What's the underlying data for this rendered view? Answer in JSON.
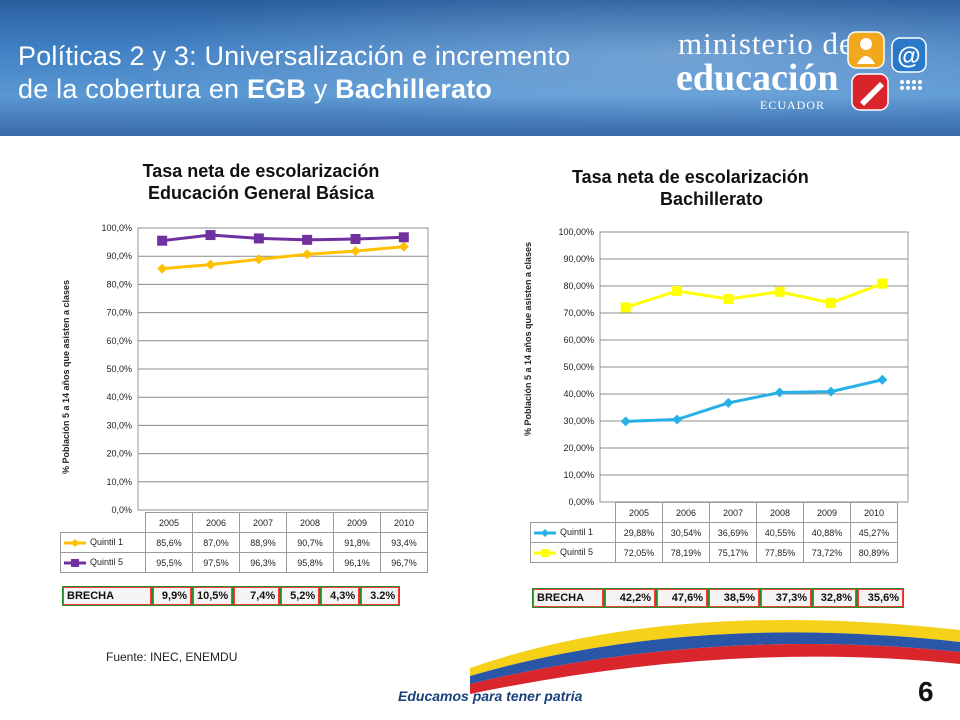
{
  "header": {
    "title_line1": "Políticas 2 y 3:  Universalización  e incremento",
    "title_line2_a": "de la cobertura en ",
    "title_line2_b": "EGB",
    "title_line2_c": " y ",
    "title_line2_d": "Bachillerato"
  },
  "logo": {
    "line1": "ministerio de",
    "line2": "educación",
    "line3": "ECUADOR"
  },
  "colors": {
    "quintil1_egb": "#ffc000",
    "quintil5_egb": "#7030a0",
    "quintil1_bach": "#26b0e6",
    "quintil5_bach": "#ffff00"
  },
  "chart_data": [
    {
      "type": "line",
      "title": "Tasa neta de escolarización Educación General Básica",
      "title_line1": "Tasa neta de escolarización",
      "title_line2": "Educación General Básica",
      "ylabel": "% Población 5 a 14 años que asisten a clases",
      "categories": [
        "2005",
        "2006",
        "2007",
        "2008",
        "2009",
        "2010"
      ],
      "ylim": [
        0,
        100
      ],
      "yticks": [
        "0,0%",
        "10,0%",
        "20,0%",
        "30,0%",
        "40,0%",
        "50,0%",
        "60,0%",
        "70,0%",
        "80,0%",
        "90,0%",
        "100,0%"
      ],
      "grid": true,
      "series": [
        {
          "name": "Quintil 1",
          "values": [
            85.6,
            87.0,
            88.9,
            90.7,
            91.8,
            93.4
          ],
          "labels": [
            "85,6%",
            "87,0%",
            "88,9%",
            "90,7%",
            "91,8%",
            "93,4%"
          ]
        },
        {
          "name": "Quintil 5",
          "values": [
            95.5,
            97.5,
            96.3,
            95.8,
            96.1,
            96.7
          ],
          "labels": [
            "95,5%",
            "97,5%",
            "96,3%",
            "95,8%",
            "96,1%",
            "96,7%"
          ]
        }
      ],
      "brecha": {
        "label": "BRECHA",
        "values": [
          "9,9%",
          "10,5%",
          "7,4%",
          "5,2%",
          "4,3%",
          "3.2%"
        ]
      }
    },
    {
      "type": "line",
      "title": "Tasa neta de escolarización Bachillerato",
      "title_line1": "Tasa neta de escolarización",
      "title_line2": "Bachillerato",
      "ylabel": "% Población 5 a 14 años que asisten a clases",
      "categories": [
        "2005",
        "2006",
        "2007",
        "2008",
        "2009",
        "2010"
      ],
      "ylim": [
        0,
        100
      ],
      "yticks": [
        "0,00%",
        "10,00%",
        "20,00%",
        "30,00%",
        "40,00%",
        "50,00%",
        "60,00%",
        "70,00%",
        "80,00%",
        "90,00%",
        "100,00%"
      ],
      "grid": true,
      "series": [
        {
          "name": "Quintil 1",
          "values": [
            29.88,
            30.54,
            36.69,
            40.55,
            40.88,
            45.27
          ],
          "labels": [
            "29,88%",
            "30,54%",
            "36,69%",
            "40,55%",
            "40,88%",
            "45,27%"
          ]
        },
        {
          "name": "Quintil 5",
          "values": [
            72.05,
            78.19,
            75.17,
            77.85,
            73.72,
            80.89
          ],
          "labels": [
            "72,05%",
            "78,19%",
            "75,17%",
            "77,85%",
            "73,72%",
            "80,89%"
          ]
        }
      ],
      "brecha": {
        "label": "BRECHA",
        "values": [
          "42,2%",
          "47,6%",
          "38,5%",
          "37,3%",
          "32,8%",
          "35,6%"
        ]
      }
    }
  ],
  "source": "Fuente: INEC,  ENEMDU",
  "footer": {
    "slogan": "Educamos para tener patria",
    "page_number": "6"
  }
}
